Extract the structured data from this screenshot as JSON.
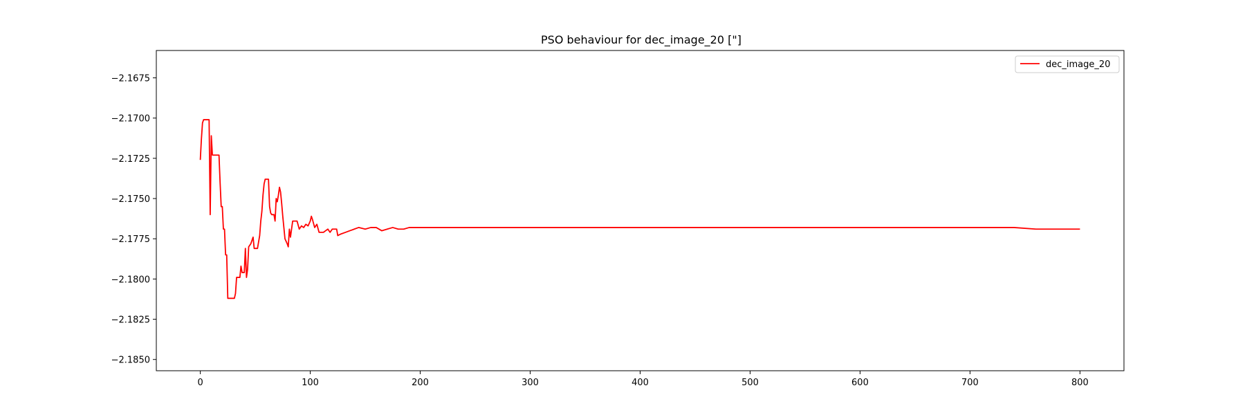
{
  "chart_data": {
    "type": "line",
    "title": "PSO behaviour for dec_image_20 [\"]",
    "xlabel": "",
    "ylabel": "",
    "xlim": [
      -40,
      840
    ],
    "ylim": [
      -2.1857,
      -2.1658
    ],
    "xticks": [
      0,
      100,
      200,
      300,
      400,
      500,
      600,
      700,
      800
    ],
    "yticks": [
      -2.185,
      -2.1825,
      -2.18,
      -2.1775,
      -2.175,
      -2.1725,
      -2.17,
      -2.1675
    ],
    "xtick_labels": [
      "0",
      "100",
      "200",
      "300",
      "400",
      "500",
      "600",
      "700",
      "800"
    ],
    "ytick_labels": [
      "−2.1850",
      "−2.1825",
      "−2.1800",
      "−2.1775",
      "−2.1750",
      "−2.1725",
      "−2.1700",
      "−2.1675"
    ],
    "grid": false,
    "legend": "upper-right",
    "series": [
      {
        "name": "dec_image_20",
        "color": "#ff0000",
        "points": [
          [
            0,
            -2.1726
          ],
          [
            1,
            -2.1713
          ],
          [
            2,
            -2.1703
          ],
          [
            3,
            -2.1701
          ],
          [
            8,
            -2.1701
          ],
          [
            9,
            -2.176
          ],
          [
            10,
            -2.1711
          ],
          [
            11,
            -2.1723
          ],
          [
            12,
            -2.1723
          ],
          [
            17,
            -2.1723
          ],
          [
            18,
            -2.174
          ],
          [
            19,
            -2.1755
          ],
          [
            20,
            -2.1755
          ],
          [
            21,
            -2.1769
          ],
          [
            22,
            -2.1769
          ],
          [
            23,
            -2.1785
          ],
          [
            24,
            -2.1785
          ],
          [
            25,
            -2.1812
          ],
          [
            26,
            -2.1812
          ],
          [
            31,
            -2.1812
          ],
          [
            32,
            -2.1809
          ],
          [
            33,
            -2.1799
          ],
          [
            36,
            -2.1799
          ],
          [
            37,
            -2.1792
          ],
          [
            38,
            -2.1796
          ],
          [
            40,
            -2.1796
          ],
          [
            41,
            -2.1781
          ],
          [
            42,
            -2.1799
          ],
          [
            43,
            -2.1794
          ],
          [
            44,
            -2.178
          ],
          [
            46,
            -2.1778
          ],
          [
            48,
            -2.1774
          ],
          [
            49,
            -2.1781
          ],
          [
            52,
            -2.1781
          ],
          [
            54,
            -2.1773
          ],
          [
            55,
            -2.1764
          ],
          [
            56,
            -2.1758
          ],
          [
            57,
            -2.1748
          ],
          [
            58,
            -2.1741
          ],
          [
            59,
            -2.1738
          ],
          [
            62,
            -2.1738
          ],
          [
            63,
            -2.1755
          ],
          [
            64,
            -2.1759
          ],
          [
            65,
            -2.176
          ],
          [
            67,
            -2.176
          ],
          [
            68,
            -2.1764
          ],
          [
            69,
            -2.175
          ],
          [
            70,
            -2.1752
          ],
          [
            71,
            -2.1748
          ],
          [
            72,
            -2.1743
          ],
          [
            73,
            -2.1746
          ],
          [
            74,
            -2.1753
          ],
          [
            75,
            -2.1761
          ],
          [
            76,
            -2.1768
          ],
          [
            77,
            -2.1775
          ],
          [
            79,
            -2.1778
          ],
          [
            80,
            -2.178
          ],
          [
            81,
            -2.1769
          ],
          [
            82,
            -2.1774
          ],
          [
            84,
            -2.1764
          ],
          [
            88,
            -2.1764
          ],
          [
            90,
            -2.1769
          ],
          [
            92,
            -2.1767
          ],
          [
            94,
            -2.1768
          ],
          [
            96,
            -2.1766
          ],
          [
            98,
            -2.1767
          ],
          [
            100,
            -2.1764
          ],
          [
            101,
            -2.1761
          ],
          [
            102,
            -2.1763
          ],
          [
            104,
            -2.1768
          ],
          [
            106,
            -2.1766
          ],
          [
            108,
            -2.1771
          ],
          [
            112,
            -2.1771
          ],
          [
            114,
            -2.177
          ],
          [
            116,
            -2.1769
          ],
          [
            118,
            -2.1771
          ],
          [
            120,
            -2.1769
          ],
          [
            124,
            -2.1769
          ],
          [
            125,
            -2.1773
          ],
          [
            128,
            -2.1772
          ],
          [
            132,
            -2.1771
          ],
          [
            136,
            -2.177
          ],
          [
            140,
            -2.1769
          ],
          [
            144,
            -2.1768
          ],
          [
            150,
            -2.1769
          ],
          [
            155,
            -2.1768
          ],
          [
            160,
            -2.1768
          ],
          [
            165,
            -2.177
          ],
          [
            170,
            -2.1769
          ],
          [
            175,
            -2.1768
          ],
          [
            180,
            -2.1769
          ],
          [
            185,
            -2.1769
          ],
          [
            190,
            -2.1768
          ],
          [
            200,
            -2.1768
          ],
          [
            210,
            -2.1768
          ],
          [
            220,
            -2.1768
          ],
          [
            250,
            -2.1768
          ],
          [
            300,
            -2.1768
          ],
          [
            350,
            -2.1768
          ],
          [
            400,
            -2.1768
          ],
          [
            450,
            -2.1768
          ],
          [
            500,
            -2.1768
          ],
          [
            550,
            -2.1768
          ],
          [
            600,
            -2.1768
          ],
          [
            650,
            -2.1768
          ],
          [
            700,
            -2.1768
          ],
          [
            740,
            -2.1768
          ],
          [
            760,
            -2.1769
          ],
          [
            780,
            -2.1769
          ],
          [
            800,
            -2.1769
          ]
        ]
      }
    ]
  }
}
